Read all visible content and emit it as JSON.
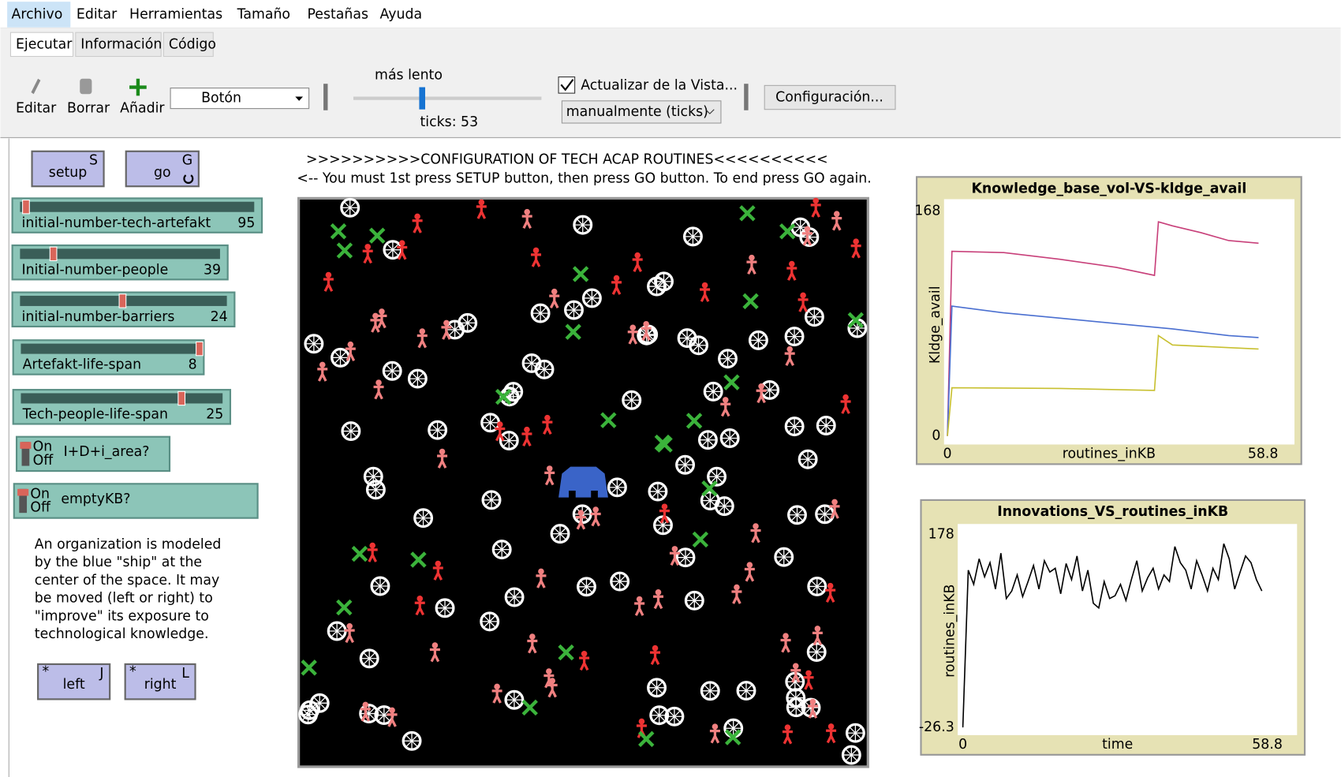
{
  "menu": [
    "Archivo",
    "Editar",
    "Herramientas",
    "Tamaño",
    "Pestañas",
    "Ayuda"
  ],
  "tabs": [
    "Ejecutar",
    "Información",
    "Código"
  ],
  "toolbar": {
    "edit": "Editar",
    "delete": "Borrar",
    "add": "Añadir",
    "widget": "Botón",
    "speed": "más lento",
    "ticks": "ticks: 53",
    "update": "Actualizar de la Vista...",
    "update_mode": "manualmente (ticks)",
    "settings": "Configuración..."
  },
  "buttons": [
    {
      "label": "setup",
      "key": "S"
    },
    {
      "label": "go",
      "key": "G"
    }
  ],
  "sliders": [
    {
      "label": "initial-number-tech-artefakt",
      "value": 95
    },
    {
      "label": "Initial-number-people",
      "value": 39
    },
    {
      "label": "initial-number-barriers",
      "value": 24
    },
    {
      "label": "Artefakt-life-span",
      "value": 8
    },
    {
      "label": "Tech-people-life-span",
      "value": 25
    }
  ],
  "switches": [
    {
      "on": "On",
      "off": "Off",
      "label": "I+D+i_area?"
    },
    {
      "on": "On",
      "off": "Off",
      "label": "emptyKB?"
    }
  ],
  "note": [
    "An organization is modeled",
    "by the blue \"ship\" at the",
    "center of the space. It may",
    "be moved (left or right) to",
    "\"improve\" its exposure to",
    "technological knowledge."
  ],
  "move_buttons": [
    {
      "label": "left",
      "key": "J"
    },
    {
      "label": "right",
      "key": "L"
    }
  ],
  "header": [
    ">>>>>>>>>>CONFIGURATION OF TECH ACAP ROUTINES<<<<<<<<<<",
    "<-- You must 1st press SETUP button, then press GO button. To end press GO again."
  ],
  "chart_data": [
    {
      "type": "line",
      "title": "Knowledge_base_vol-VS-kldge_avail",
      "x_label": "routines_inKB",
      "y_label": "Kldge_avail",
      "xlim": [
        0,
        58.8
      ],
      "ylim": [
        0,
        168
      ],
      "xticks": [
        0,
        58.8
      ],
      "yticks": [
        0,
        168
      ],
      "series": [
        {
          "color": "#c8407a",
          "x": [
            0,
            0.8,
            10,
            20,
            30,
            36.8,
            37.5,
            40,
            45,
            50,
            55.3
          ],
          "values": [
            0,
            138,
            137,
            132,
            126,
            120,
            160,
            157,
            152,
            146,
            144
          ]
        },
        {
          "color": "#4a6fd0",
          "x": [
            0,
            0.8,
            10,
            20,
            30,
            40,
            50,
            55.3
          ],
          "values": [
            0,
            97,
            92,
            88,
            84,
            80,
            75,
            73.5
          ]
        },
        {
          "color": "#c8c030",
          "x": [
            0,
            0.8,
            20,
            36.8,
            37.5,
            40,
            50,
            55.3
          ],
          "values": [
            0,
            36,
            35.5,
            34,
            75,
            68,
            66,
            65
          ]
        }
      ]
    },
    {
      "type": "line",
      "title": "Innovations_VS_routines_inKB",
      "x_label": "time",
      "y_label": "routines_inKB",
      "xlim": [
        0,
        58.8
      ],
      "ylim": [
        -26.3,
        178
      ],
      "xticks": [
        0,
        58.8
      ],
      "yticks": [
        -26.3,
        178
      ],
      "series": [
        {
          "color": "#000000",
          "x": [
            0,
            1,
            2,
            3,
            4,
            5,
            6,
            7,
            8,
            9,
            10,
            11,
            12,
            13,
            14,
            15,
            16,
            17,
            18,
            19,
            20,
            21,
            22,
            23,
            24,
            25,
            26,
            27,
            28,
            29,
            30,
            31,
            32,
            33,
            34,
            35,
            36,
            37,
            38,
            39,
            40,
            41,
            42,
            43,
            44,
            45,
            46,
            47,
            48,
            49,
            50,
            51,
            52,
            53,
            54,
            55
          ],
          "values": [
            -26.3,
            140,
            125,
            152,
            133,
            148,
            120,
            158,
            110,
            118,
            135,
            112,
            128,
            145,
            120,
            150,
            138,
            142,
            115,
            147,
            130,
            155,
            118,
            140,
            105,
            100,
            128,
            110,
            113,
            125,
            108,
            130,
            150,
            118,
            132,
            142,
            120,
            135,
            128,
            165,
            148,
            140,
            120,
            150,
            135,
            118,
            142,
            130,
            168,
            152,
            120,
            138,
            155,
            148,
            130,
            118
          ]
        }
      ]
    }
  ]
}
